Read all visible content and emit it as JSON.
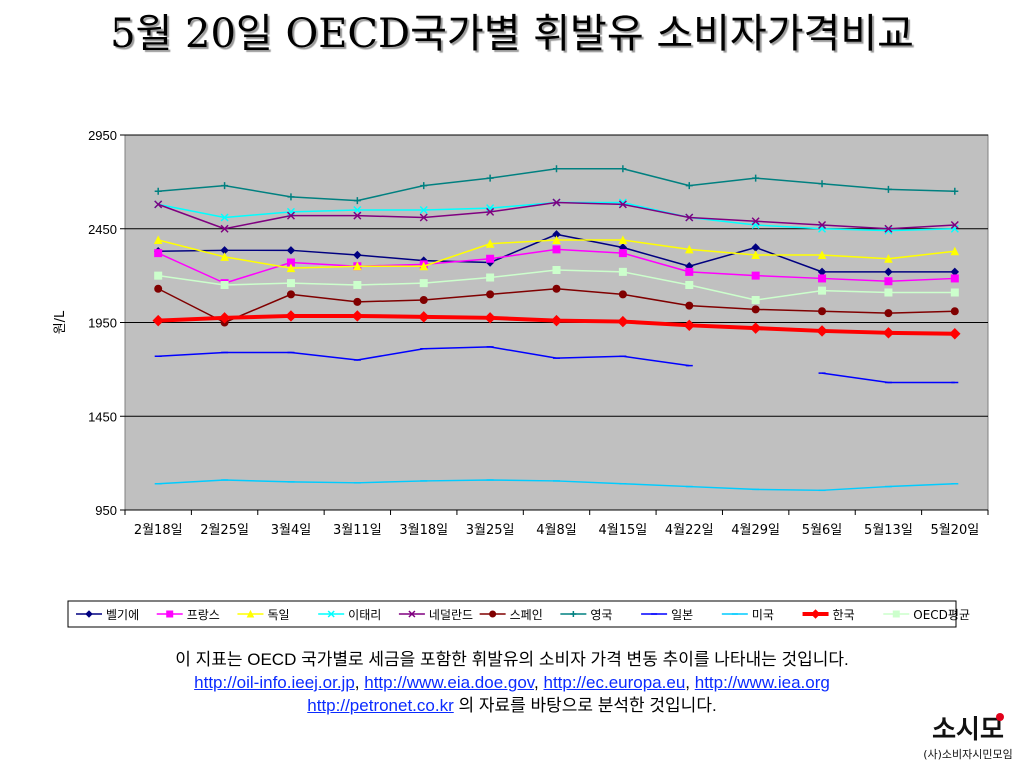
{
  "slide": {
    "title": "5월 20일 OECD국가별 휘발유 소비자가격비교",
    "caption_line1": "이 지표는 OECD 국가별로 세금을 포함한 휘발유의 소비자 가격 변동 추이를 나타내는 것입니다.",
    "links": [
      "http://oil-info.ieej.or.jp",
      "http://www.eia.doe.gov",
      "http://ec.europa.eu",
      "http://www.iea.org",
      "http://petronet.co.kr"
    ],
    "link_separator": ", ",
    "caption_suffix": " 의 자료를 바탕으로 분석한 것입니다.",
    "logo_text": "소시모",
    "logo_subtext": "(사)소비자시민모임",
    "link_color": "#0b2bff"
  },
  "chart_data": {
    "type": "line",
    "title": "",
    "xlabel": "",
    "ylabel": "원/L",
    "ylim": [
      950,
      2950
    ],
    "yticks": [
      950,
      1450,
      1950,
      2450,
      2950
    ],
    "grid": true,
    "plot_background": "#c0c0c0",
    "legend_position": "bottom",
    "categories": [
      "2월18일",
      "2월25일",
      "3월4일",
      "3월11일",
      "3월18일",
      "3월25일",
      "4월8일",
      "4월15일",
      "4월22일",
      "4월29일",
      "5월6일",
      "5월13일",
      "5월20일"
    ],
    "series": [
      {
        "name": "벨기에",
        "color": "#000080",
        "marker": "diamond",
        "width": 1.5,
        "values": [
          2330,
          2335,
          2335,
          2310,
          2280,
          2270,
          2420,
          2350,
          2250,
          2350,
          2220,
          2220,
          2220
        ]
      },
      {
        "name": "프랑스",
        "color": "#ff00ff",
        "marker": "square",
        "width": 1.5,
        "values": [
          2320,
          2160,
          2270,
          2250,
          2260,
          2290,
          2340,
          2320,
          2220,
          2200,
          2185,
          2170,
          2185
        ]
      },
      {
        "name": "독일",
        "color": "#ffff00",
        "marker": "triangle",
        "width": 1.5,
        "values": [
          2390,
          2300,
          2240,
          2250,
          2250,
          2370,
          2390,
          2390,
          2340,
          2310,
          2310,
          2290,
          2330
        ]
      },
      {
        "name": "이태리",
        "color": "#00ffff",
        "marker": "x",
        "width": 1.5,
        "values": [
          2580,
          2510,
          2540,
          2550,
          2550,
          2560,
          2590,
          2590,
          2510,
          2470,
          2450,
          2440,
          2450
        ]
      },
      {
        "name": "네덜란드",
        "color": "#800080",
        "marker": "x",
        "width": 1.5,
        "values": [
          2580,
          2450,
          2520,
          2520,
          2510,
          2540,
          2590,
          2580,
          2510,
          2490,
          2470,
          2450,
          2470
        ]
      },
      {
        "name": "스페인",
        "color": "#800000",
        "marker": "circle",
        "width": 1.5,
        "values": [
          2130,
          1950,
          2100,
          2060,
          2070,
          2100,
          2130,
          2100,
          2040,
          2020,
          2010,
          2000,
          2010
        ]
      },
      {
        "name": "영국",
        "color": "#008080",
        "marker": "plus",
        "width": 1.5,
        "values": [
          2650,
          2680,
          2620,
          2600,
          2680,
          2720,
          2770,
          2770,
          2680,
          2720,
          2690,
          2660,
          2650
        ]
      },
      {
        "name": "일본",
        "color": "#0000ff",
        "marker": "dash",
        "width": 1.5,
        "values": [
          1770,
          1790,
          1790,
          1750,
          1810,
          1820,
          1760,
          1770,
          1720,
          null,
          1680,
          1630,
          1630
        ]
      },
      {
        "name": "미국",
        "color": "#00ccff",
        "marker": "dash",
        "width": 1.5,
        "values": [
          1090,
          1110,
          1100,
          1095,
          1105,
          1110,
          1105,
          1090,
          1075,
          1060,
          1055,
          1075,
          1090
        ]
      },
      {
        "name": "한국",
        "color": "#ff0000",
        "marker": "diamond",
        "width": 4,
        "values": [
          1960,
          1975,
          1985,
          1985,
          1980,
          1975,
          1960,
          1955,
          1935,
          1920,
          1905,
          1895,
          1890
        ]
      },
      {
        "name": "OECD평균",
        "color": "#ccffcc",
        "marker": "square",
        "width": 1.5,
        "values": [
          2200,
          2150,
          2160,
          2150,
          2160,
          2190,
          2230,
          2220,
          2150,
          2070,
          2120,
          2110,
          2110
        ]
      }
    ]
  }
}
